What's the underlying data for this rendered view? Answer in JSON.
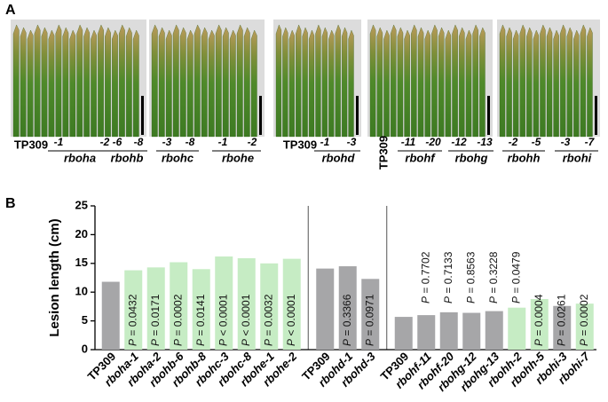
{
  "panel_a": {
    "label": "A",
    "groups": [
      {
        "name": "TP309"
      },
      {
        "name": "rboha",
        "lines": [
          "-1",
          "-2"
        ]
      },
      {
        "name": "rbohb",
        "lines": [
          "-6",
          "-8"
        ]
      },
      {
        "name": "rbohc",
        "lines": [
          "-3",
          "-8"
        ]
      },
      {
        "name": "rbohe",
        "lines": [
          "-1",
          "-2"
        ]
      },
      {
        "name": "TP309"
      },
      {
        "name": "rbohd",
        "lines": [
          "-1",
          "-3"
        ]
      },
      {
        "name": "TP309"
      },
      {
        "name": "rbohf",
        "lines": [
          "-11",
          "-20"
        ]
      },
      {
        "name": "rbohg",
        "lines": [
          "-12",
          "-13"
        ]
      },
      {
        "name": "rbohh",
        "lines": [
          "-2",
          "-5"
        ]
      },
      {
        "name": "rbohi",
        "lines": [
          "-3",
          "-7"
        ]
      }
    ]
  },
  "chart_data": {
    "type": "bar",
    "label": "B",
    "ylabel": "Lesion length (cm)",
    "categories": [
      "TP309",
      "rboha-1",
      "rboha-2",
      "rbohb-6",
      "rbohb-8",
      "rbohc-3",
      "rbohc-8",
      "rbohe-1",
      "rbohe-2",
      "TP309",
      "rbohd-1",
      "rbohd-3",
      "TP309",
      "rbohf-11",
      "rbohf-20",
      "rbohg-12",
      "rbohg-13",
      "rbohh-2",
      "rbohh-5",
      "rbohi-3",
      "rbohi-7"
    ],
    "values": [
      11.8,
      13.8,
      14.3,
      15.2,
      14.0,
      16.2,
      15.9,
      15.0,
      15.8,
      14.1,
      14.5,
      12.3,
      5.7,
      6.0,
      6.5,
      6.4,
      6.7,
      7.3,
      8.8,
      7.6,
      8.0
    ],
    "colors": [
      "#a6a6a8",
      "#c6ecc4",
      "#c6ecc4",
      "#c6ecc4",
      "#c6ecc4",
      "#c6ecc4",
      "#c6ecc4",
      "#c6ecc4",
      "#c6ecc4",
      "#a6a6a8",
      "#a6a6a8",
      "#a6a6a8",
      "#a6a6a8",
      "#a6a6a8",
      "#a6a6a8",
      "#a6a6a8",
      "#a6a6a8",
      "#c6ecc4",
      "#c6ecc4",
      "#a6a6a8",
      "#c6ecc4"
    ],
    "p_labels": [
      null,
      "P = 0.0432",
      "P = 0.0171",
      "P = 0.0002",
      "P = 0.0141",
      "P < 0.0001",
      "P < 0.0001",
      "P = 0.0032",
      "P < 0.0001",
      null,
      "P = 0.3366",
      "P = 0.0971",
      null,
      "P = 0.7702",
      "P = 0.7133",
      "P = 0.8563",
      "P = 0.3228",
      "P = 0.0479",
      "P = 0.0004",
      "P = 0.0261",
      "P = 0.0002"
    ],
    "ylim": [
      0,
      25
    ],
    "yticks": [
      0,
      5,
      10,
      15,
      20,
      25
    ]
  }
}
